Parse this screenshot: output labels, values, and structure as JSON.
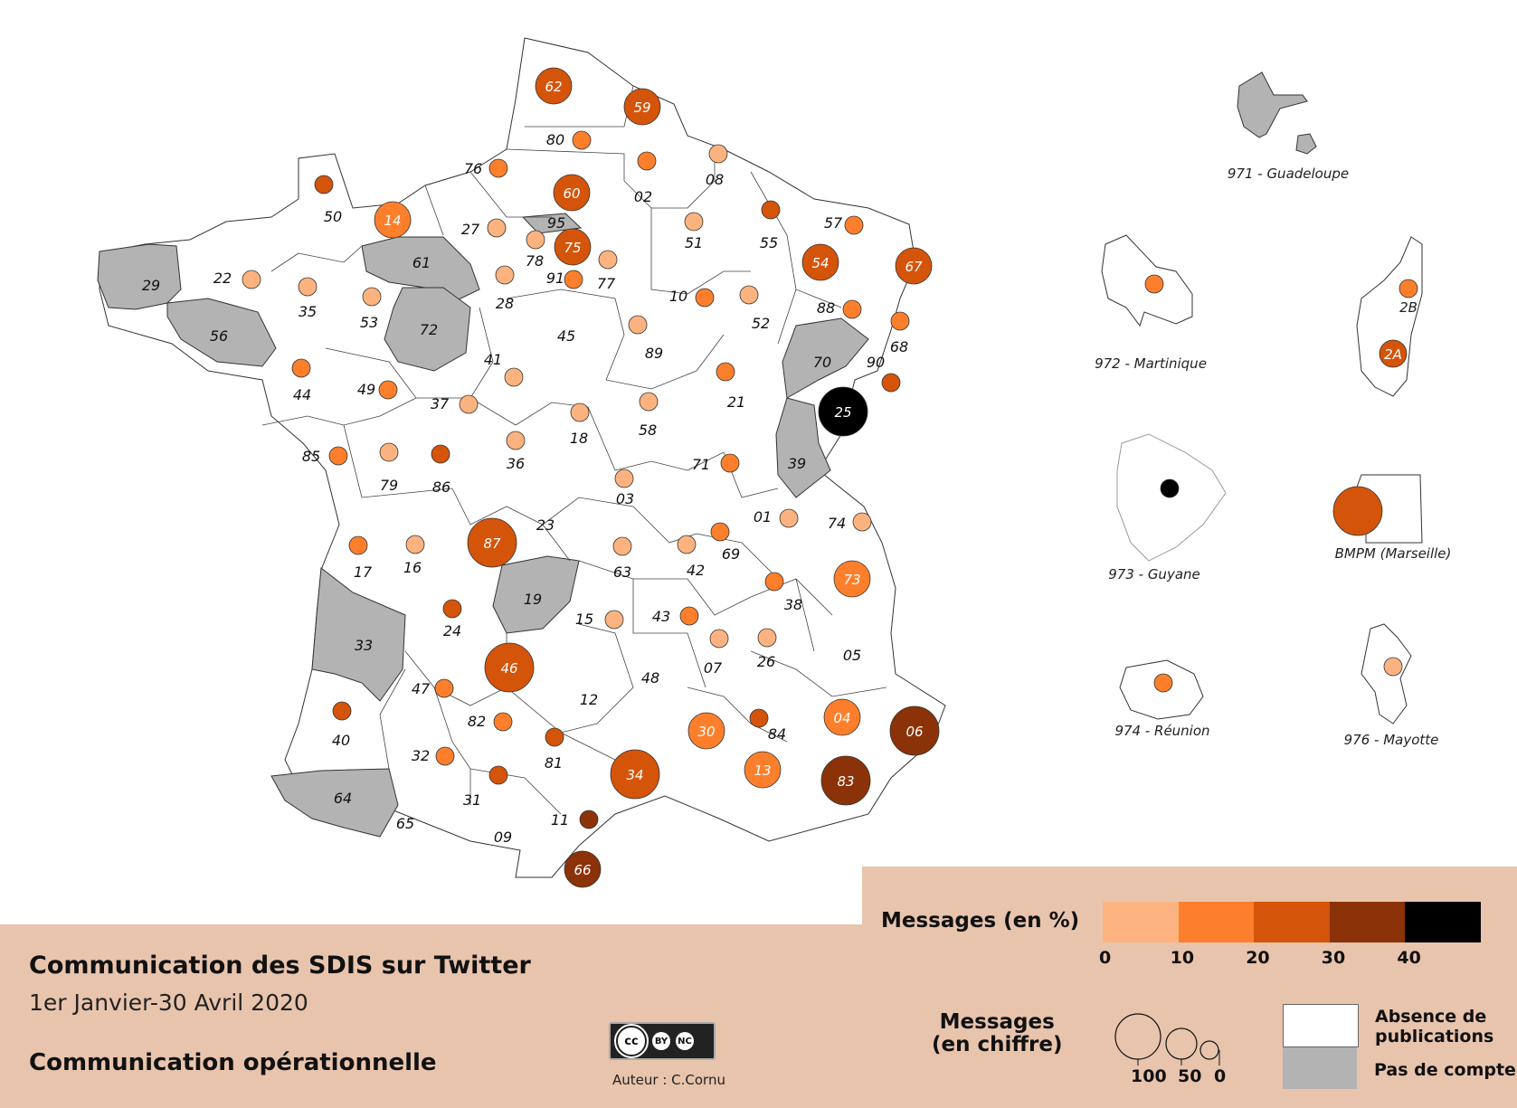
{
  "title": "Communication des SDIS sur Twitter",
  "subtitle": "1er Janvier-30 Avril 2020",
  "theme": "Communication opérationnelle",
  "author": "Auteur : C.Cornu",
  "license": {
    "cc": "cc",
    "by": "BY",
    "nc": "NC"
  },
  "legend": {
    "color_title": "Messages (en %)",
    "color_classes": [
      {
        "color": "#fdb37f"
      },
      {
        "color": "#fd7f2b"
      },
      {
        "color": "#d4540a"
      },
      {
        "color": "#8c3208"
      },
      {
        "color": "#000000"
      }
    ],
    "color_ticks": [
      "0",
      "10",
      "20",
      "30",
      "40"
    ],
    "size_title_line1": "Messages",
    "size_title_line2": "(en chiffre)",
    "size_ticks": [
      "100",
      "50",
      "0"
    ],
    "absence_label_line1": "Absence de",
    "absence_label_line2": "publications",
    "no_account_label": "Pas de compte"
  },
  "no_account_color": "#b3b3b3",
  "departments": [
    {
      "code": "62",
      "cls": 2,
      "big": true
    },
    {
      "code": "59",
      "cls": 2,
      "big": true
    },
    {
      "code": "80",
      "cls": 1
    },
    {
      "code": "76",
      "cls": 1
    },
    {
      "code": "02",
      "cls": 1
    },
    {
      "code": "08",
      "cls": 0
    },
    {
      "code": "60",
      "cls": 2,
      "big": true
    },
    {
      "code": "50",
      "cls": 2
    },
    {
      "code": "14",
      "cls": 1,
      "big": true
    },
    {
      "code": "27",
      "cls": 0
    },
    {
      "code": "95",
      "cls": null
    },
    {
      "code": "78",
      "cls": 0
    },
    {
      "code": "75",
      "cls": 2,
      "big": true
    },
    {
      "code": "91",
      "cls": 1
    },
    {
      "code": "77",
      "cls": 0
    },
    {
      "code": "51",
      "cls": 0
    },
    {
      "code": "55",
      "cls": 2
    },
    {
      "code": "57",
      "cls": 1
    },
    {
      "code": "54",
      "cls": 2,
      "big": true
    },
    {
      "code": "67",
      "cls": 2,
      "big": true
    },
    {
      "code": "22",
      "cls": 0
    },
    {
      "code": "29",
      "cls": null
    },
    {
      "code": "35",
      "cls": 0
    },
    {
      "code": "61",
      "cls": null
    },
    {
      "code": "53",
      "cls": 0
    },
    {
      "code": "72",
      "cls": null
    },
    {
      "code": "28",
      "cls": 0
    },
    {
      "code": "56",
      "cls": null
    },
    {
      "code": "10",
      "cls": 1
    },
    {
      "code": "52",
      "cls": 0
    },
    {
      "code": "88",
      "cls": 1
    },
    {
      "code": "68",
      "cls": 1
    },
    {
      "code": "45",
      "cls": null,
      "empty": true
    },
    {
      "code": "89",
      "cls": 0
    },
    {
      "code": "70",
      "cls": null
    },
    {
      "code": "90",
      "cls": 2
    },
    {
      "code": "44",
      "cls": 1
    },
    {
      "code": "49",
      "cls": 1
    },
    {
      "code": "41",
      "cls": 0
    },
    {
      "code": "37",
      "cls": 0
    },
    {
      "code": "21",
      "cls": 1
    },
    {
      "code": "25",
      "cls": 4,
      "big": true
    },
    {
      "code": "18",
      "cls": 0
    },
    {
      "code": "58",
      "cls": 0
    },
    {
      "code": "85",
      "cls": 1
    },
    {
      "code": "79",
      "cls": 0
    },
    {
      "code": "86",
      "cls": 2
    },
    {
      "code": "36",
      "cls": 0
    },
    {
      "code": "71",
      "cls": 1
    },
    {
      "code": "39",
      "cls": null
    },
    {
      "code": "03",
      "cls": 0
    },
    {
      "code": "01",
      "cls": 0
    },
    {
      "code": "74",
      "cls": 0
    },
    {
      "code": "17",
      "cls": 1
    },
    {
      "code": "16",
      "cls": 0
    },
    {
      "code": "87",
      "cls": 2,
      "big": true
    },
    {
      "code": "23",
      "cls": null,
      "empty": true
    },
    {
      "code": "63",
      "cls": 0
    },
    {
      "code": "42",
      "cls": 0
    },
    {
      "code": "69",
      "cls": 1
    },
    {
      "code": "73",
      "cls": 1,
      "big": true
    },
    {
      "code": "19",
      "cls": null
    },
    {
      "code": "24",
      "cls": 2
    },
    {
      "code": "15",
      "cls": 0
    },
    {
      "code": "43",
      "cls": 1
    },
    {
      "code": "38",
      "cls": 1
    },
    {
      "code": "33",
      "cls": null
    },
    {
      "code": "46",
      "cls": 2,
      "big": true
    },
    {
      "code": "07",
      "cls": 0
    },
    {
      "code": "26",
      "cls": 0
    },
    {
      "code": "05",
      "cls": null,
      "empty": true
    },
    {
      "code": "47",
      "cls": 1
    },
    {
      "code": "48",
      "cls": null,
      "empty": true
    },
    {
      "code": "12",
      "cls": null,
      "empty": true
    },
    {
      "code": "40",
      "cls": 2
    },
    {
      "code": "82",
      "cls": 1
    },
    {
      "code": "30",
      "cls": 1,
      "big": true
    },
    {
      "code": "84",
      "cls": 2
    },
    {
      "code": "04",
      "cls": 1,
      "big": true
    },
    {
      "code": "06",
      "cls": 3,
      "big": true
    },
    {
      "code": "32",
      "cls": 1
    },
    {
      "code": "81",
      "cls": 2
    },
    {
      "code": "34",
      "cls": 2,
      "big": true
    },
    {
      "code": "13",
      "cls": 1,
      "big": true
    },
    {
      "code": "83",
      "cls": 3,
      "big": true
    },
    {
      "code": "64",
      "cls": null
    },
    {
      "code": "31",
      "cls": 2
    },
    {
      "code": "65",
      "cls": null,
      "empty": true
    },
    {
      "code": "09",
      "cls": null,
      "empty": true
    },
    {
      "code": "11",
      "cls": 3
    },
    {
      "code": "66",
      "cls": 3,
      "big": true
    }
  ],
  "territories": [
    {
      "name": "971 - Guadeloupe",
      "cls": null
    },
    {
      "name": "972 - Martinique",
      "cls": 1
    },
    {
      "name": "2B",
      "cls": 1
    },
    {
      "name": "2A",
      "cls": 2
    },
    {
      "name": "973 - Guyane",
      "cls": 4
    },
    {
      "name": "BMPM (Marseille)",
      "cls": 2
    },
    {
      "name": "974 - Réunion",
      "cls": 1
    },
    {
      "name": "976 - Mayotte",
      "cls": 0
    }
  ]
}
